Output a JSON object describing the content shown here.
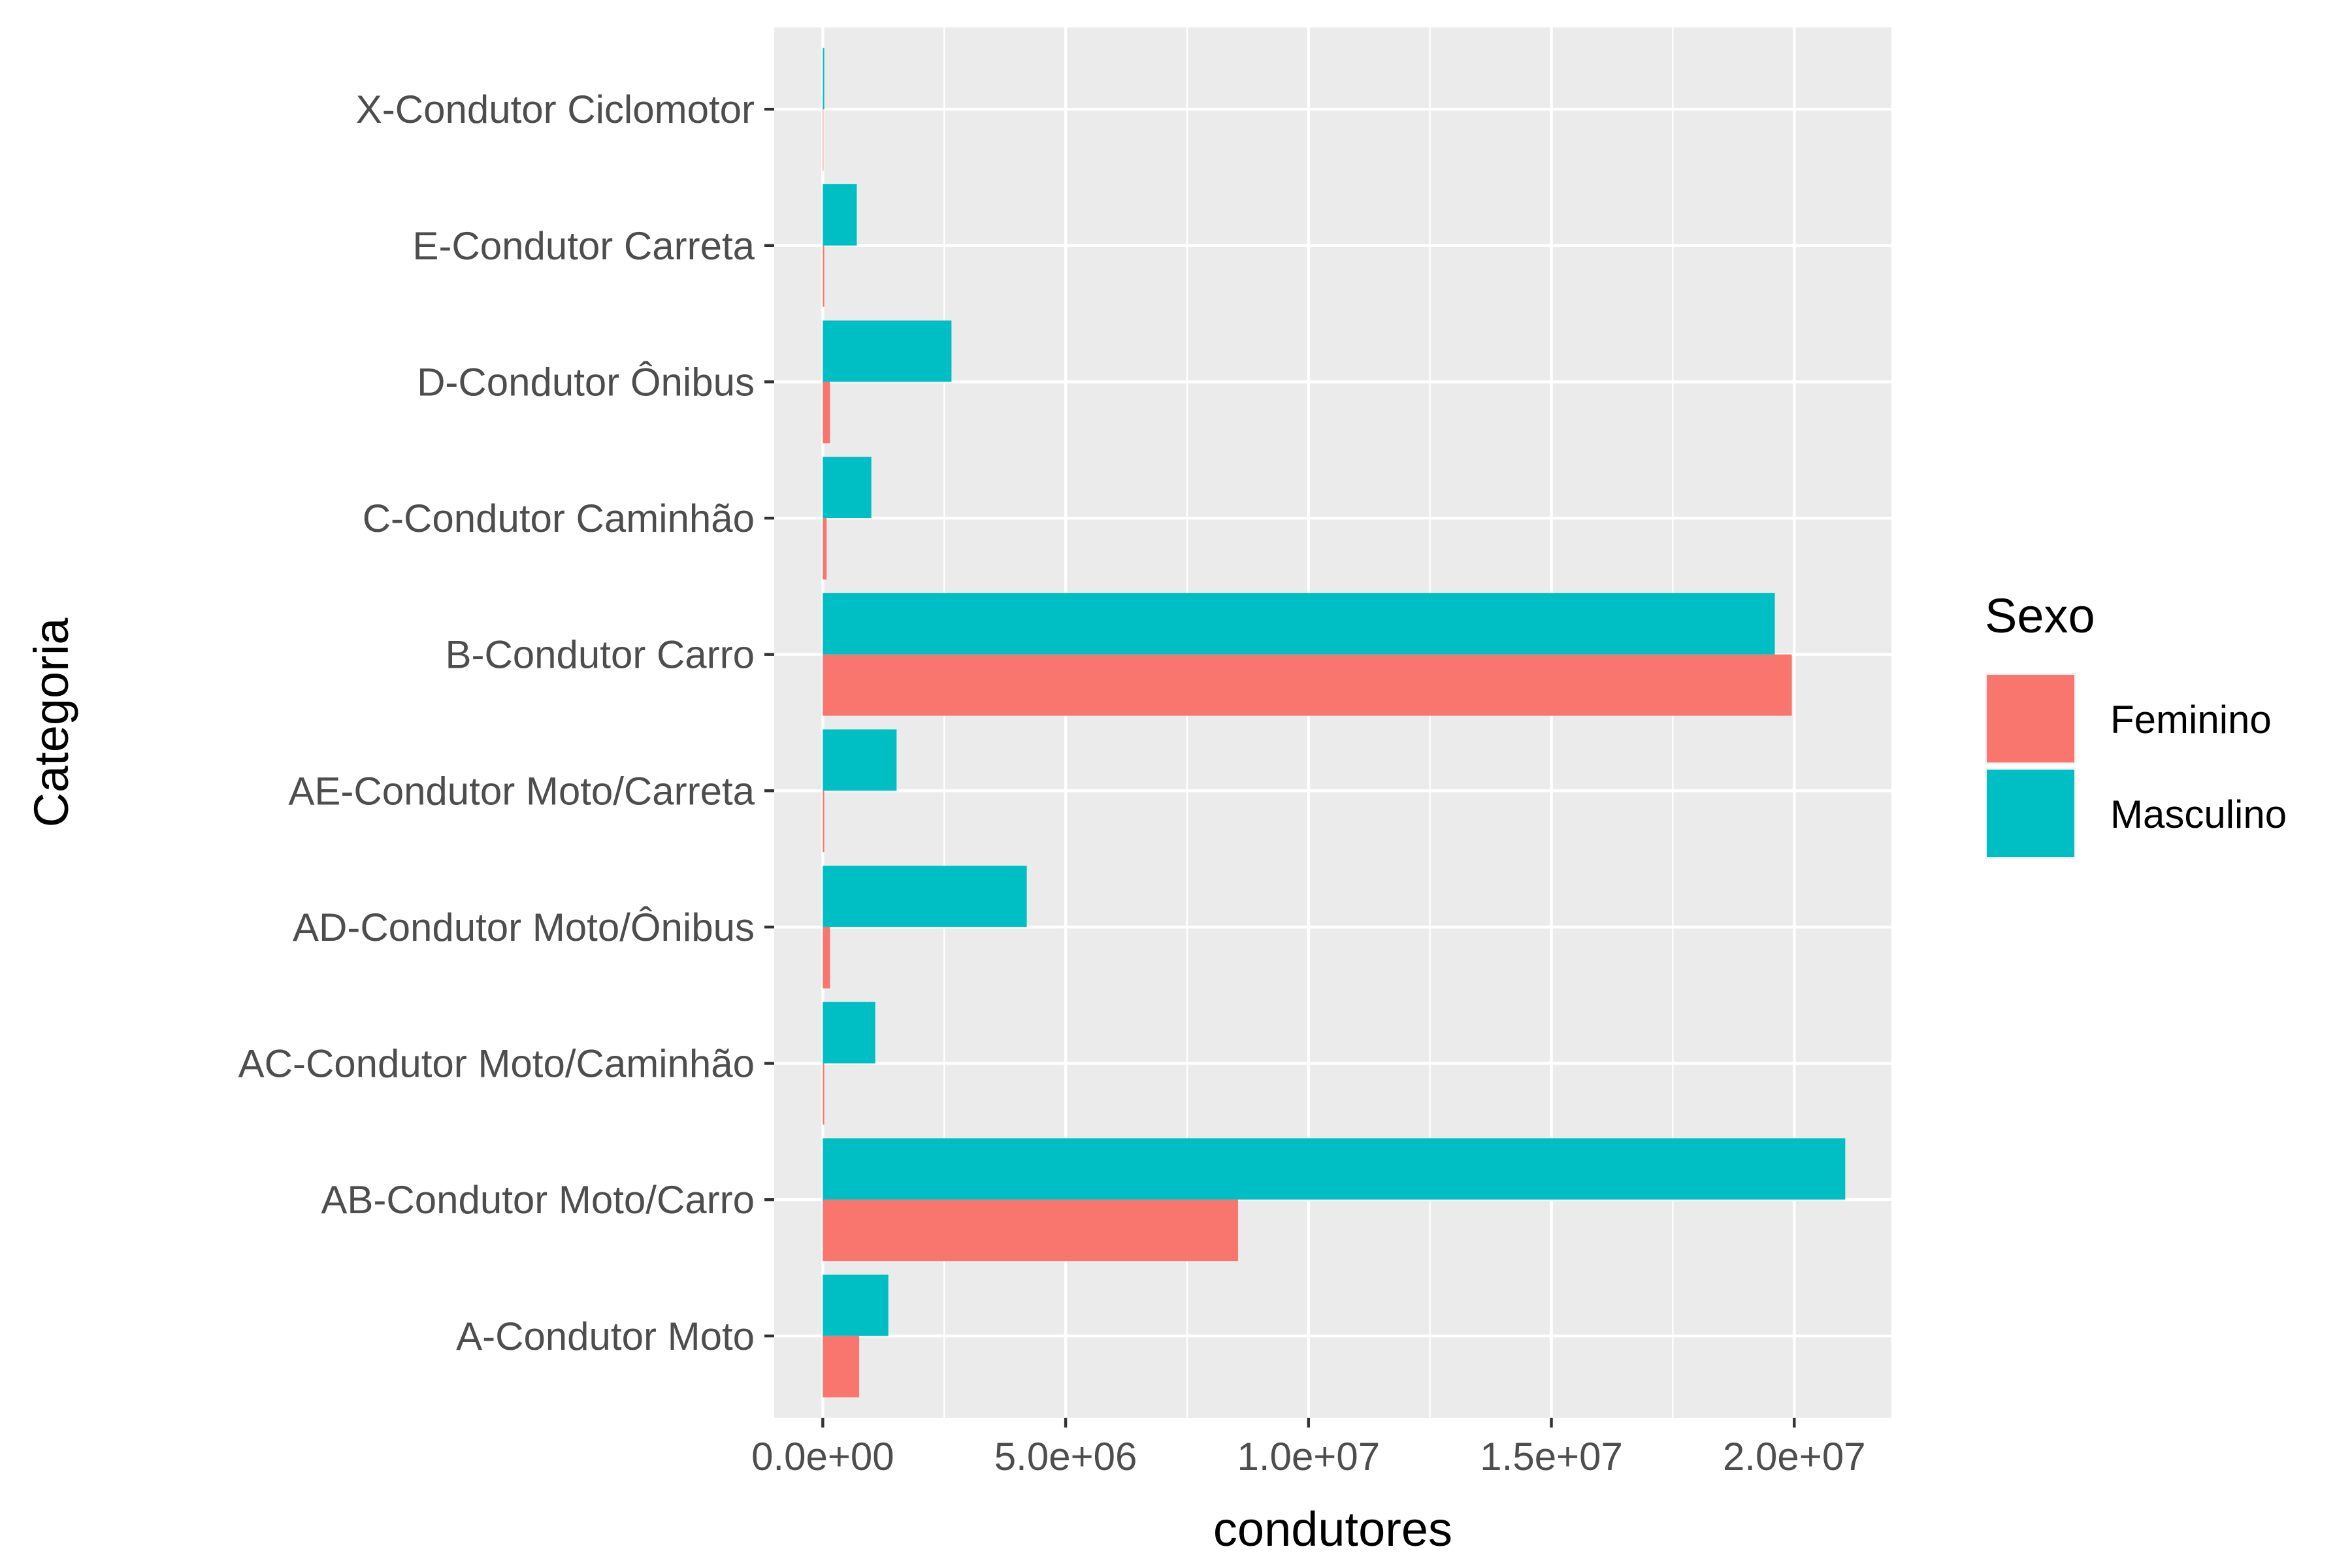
{
  "chart_data": {
    "type": "bar",
    "orientation": "horizontal",
    "xlabel": "condutores",
    "ylabel": "Categoria",
    "xlim": [
      -1000000,
      22000000
    ],
    "xticks": [
      0,
      5000000,
      10000000,
      15000000,
      20000000
    ],
    "xtick_labels": [
      "0.0e+00",
      "5.0e+06",
      "1.0e+07",
      "1.5e+07",
      "2.0e+07"
    ],
    "categories": [
      "A-Condutor Moto",
      "AB-Condutor Moto/Carro",
      "AC-Condutor Moto/Caminhão",
      "AD-Condutor Moto/Ônibus",
      "AE-Condutor Moto/Carreta",
      "B-Condutor Carro",
      "C-Condutor Caminhão",
      "D-Condutor Ônibus",
      "E-Condutor Carreta",
      "X-Condutor Ciclomotor"
    ],
    "series": [
      {
        "name": "Feminino",
        "color": "#F8766D",
        "values": [
          750000,
          8550000,
          30000,
          150000,
          30000,
          19950000,
          80000,
          150000,
          30000,
          10000
        ]
      },
      {
        "name": "Masculino",
        "color": "#00BFC4",
        "values": [
          1350000,
          21050000,
          1080000,
          4200000,
          1520000,
          19600000,
          1000000,
          2650000,
          700000,
          30000
        ]
      }
    ],
    "legend": {
      "title": "Sexo",
      "position": "right"
    },
    "grid": true,
    "panel_background": "#EBEBEB",
    "grid_color": "#FFFFFF"
  }
}
